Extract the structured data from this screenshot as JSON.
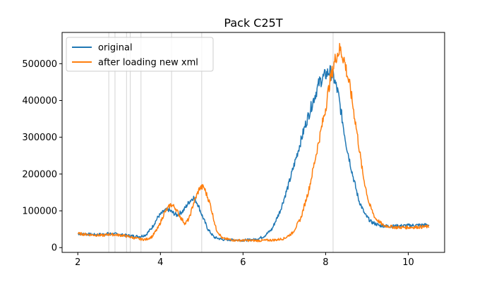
{
  "chart_data": {
    "type": "line",
    "title": "Pack C25T",
    "xlabel": "",
    "ylabel": "",
    "xlim": [
      1.62,
      10.88
    ],
    "ylim": [
      -13000,
      585000
    ],
    "x_ticks": [
      2,
      4,
      6,
      8,
      10
    ],
    "y_ticks": [
      0,
      100000,
      200000,
      300000,
      400000,
      500000
    ],
    "grid": false,
    "legend_position": "top-left",
    "vertical_lines": {
      "color": "#d3d3d3",
      "x": [
        2.75,
        2.9,
        3.18,
        3.27,
        3.53,
        4.27,
        5.0,
        8.18
      ]
    },
    "series": [
      {
        "name": "original",
        "color": "#1f77b4",
        "points": [
          [
            2.0,
            38000
          ],
          [
            2.2,
            37000
          ],
          [
            2.4,
            35000
          ],
          [
            2.6,
            36000
          ],
          [
            2.7,
            38000
          ],
          [
            2.9,
            37000
          ],
          [
            3.1,
            34000
          ],
          [
            3.3,
            32000
          ],
          [
            3.5,
            30000
          ],
          [
            3.65,
            35000
          ],
          [
            3.8,
            55000
          ],
          [
            3.95,
            85000
          ],
          [
            4.1,
            100000
          ],
          [
            4.2,
            103000
          ],
          [
            4.3,
            95000
          ],
          [
            4.4,
            88000
          ],
          [
            4.55,
            100000
          ],
          [
            4.7,
            125000
          ],
          [
            4.8,
            137000
          ],
          [
            4.9,
            120000
          ],
          [
            5.0,
            90000
          ],
          [
            5.15,
            50000
          ],
          [
            5.3,
            28000
          ],
          [
            5.5,
            22000
          ],
          [
            6.0,
            20000
          ],
          [
            6.3,
            22000
          ],
          [
            6.5,
            30000
          ],
          [
            6.7,
            50000
          ],
          [
            6.9,
            100000
          ],
          [
            7.1,
            170000
          ],
          [
            7.3,
            250000
          ],
          [
            7.5,
            330000
          ],
          [
            7.7,
            400000
          ],
          [
            7.85,
            450000
          ],
          [
            8.0,
            470000
          ],
          [
            8.1,
            480000
          ],
          [
            8.2,
            460000
          ],
          [
            8.3,
            420000
          ],
          [
            8.4,
            350000
          ],
          [
            8.5,
            280000
          ],
          [
            8.65,
            200000
          ],
          [
            8.8,
            130000
          ],
          [
            8.95,
            90000
          ],
          [
            9.1,
            70000
          ],
          [
            9.3,
            60000
          ],
          [
            9.6,
            58000
          ],
          [
            10.0,
            60000
          ],
          [
            10.5,
            62000
          ]
        ]
      },
      {
        "name": "after loading new xml",
        "color": "#ff7f0e",
        "points": [
          [
            2.0,
            38000
          ],
          [
            2.3,
            35000
          ],
          [
            2.6,
            33000
          ],
          [
            2.75,
            36000
          ],
          [
            2.9,
            35000
          ],
          [
            3.1,
            33000
          ],
          [
            3.3,
            28000
          ],
          [
            3.5,
            23000
          ],
          [
            3.65,
            22000
          ],
          [
            3.8,
            30000
          ],
          [
            3.95,
            55000
          ],
          [
            4.1,
            95000
          ],
          [
            4.25,
            117000
          ],
          [
            4.35,
            110000
          ],
          [
            4.5,
            80000
          ],
          [
            4.6,
            65000
          ],
          [
            4.7,
            80000
          ],
          [
            4.8,
            120000
          ],
          [
            4.95,
            162000
          ],
          [
            5.05,
            165000
          ],
          [
            5.2,
            120000
          ],
          [
            5.35,
            50000
          ],
          [
            5.5,
            25000
          ],
          [
            5.8,
            20000
          ],
          [
            6.4,
            19000
          ],
          [
            6.8,
            21000
          ],
          [
            7.0,
            25000
          ],
          [
            7.2,
            40000
          ],
          [
            7.4,
            80000
          ],
          [
            7.6,
            160000
          ],
          [
            7.8,
            270000
          ],
          [
            8.0,
            380000
          ],
          [
            8.1,
            450000
          ],
          [
            8.25,
            520000
          ],
          [
            8.35,
            540000
          ],
          [
            8.45,
            510000
          ],
          [
            8.6,
            430000
          ],
          [
            8.75,
            320000
          ],
          [
            8.9,
            200000
          ],
          [
            9.05,
            120000
          ],
          [
            9.2,
            80000
          ],
          [
            9.4,
            60000
          ],
          [
            9.7,
            55000
          ],
          [
            10.0,
            55000
          ],
          [
            10.5,
            57000
          ]
        ]
      }
    ]
  }
}
